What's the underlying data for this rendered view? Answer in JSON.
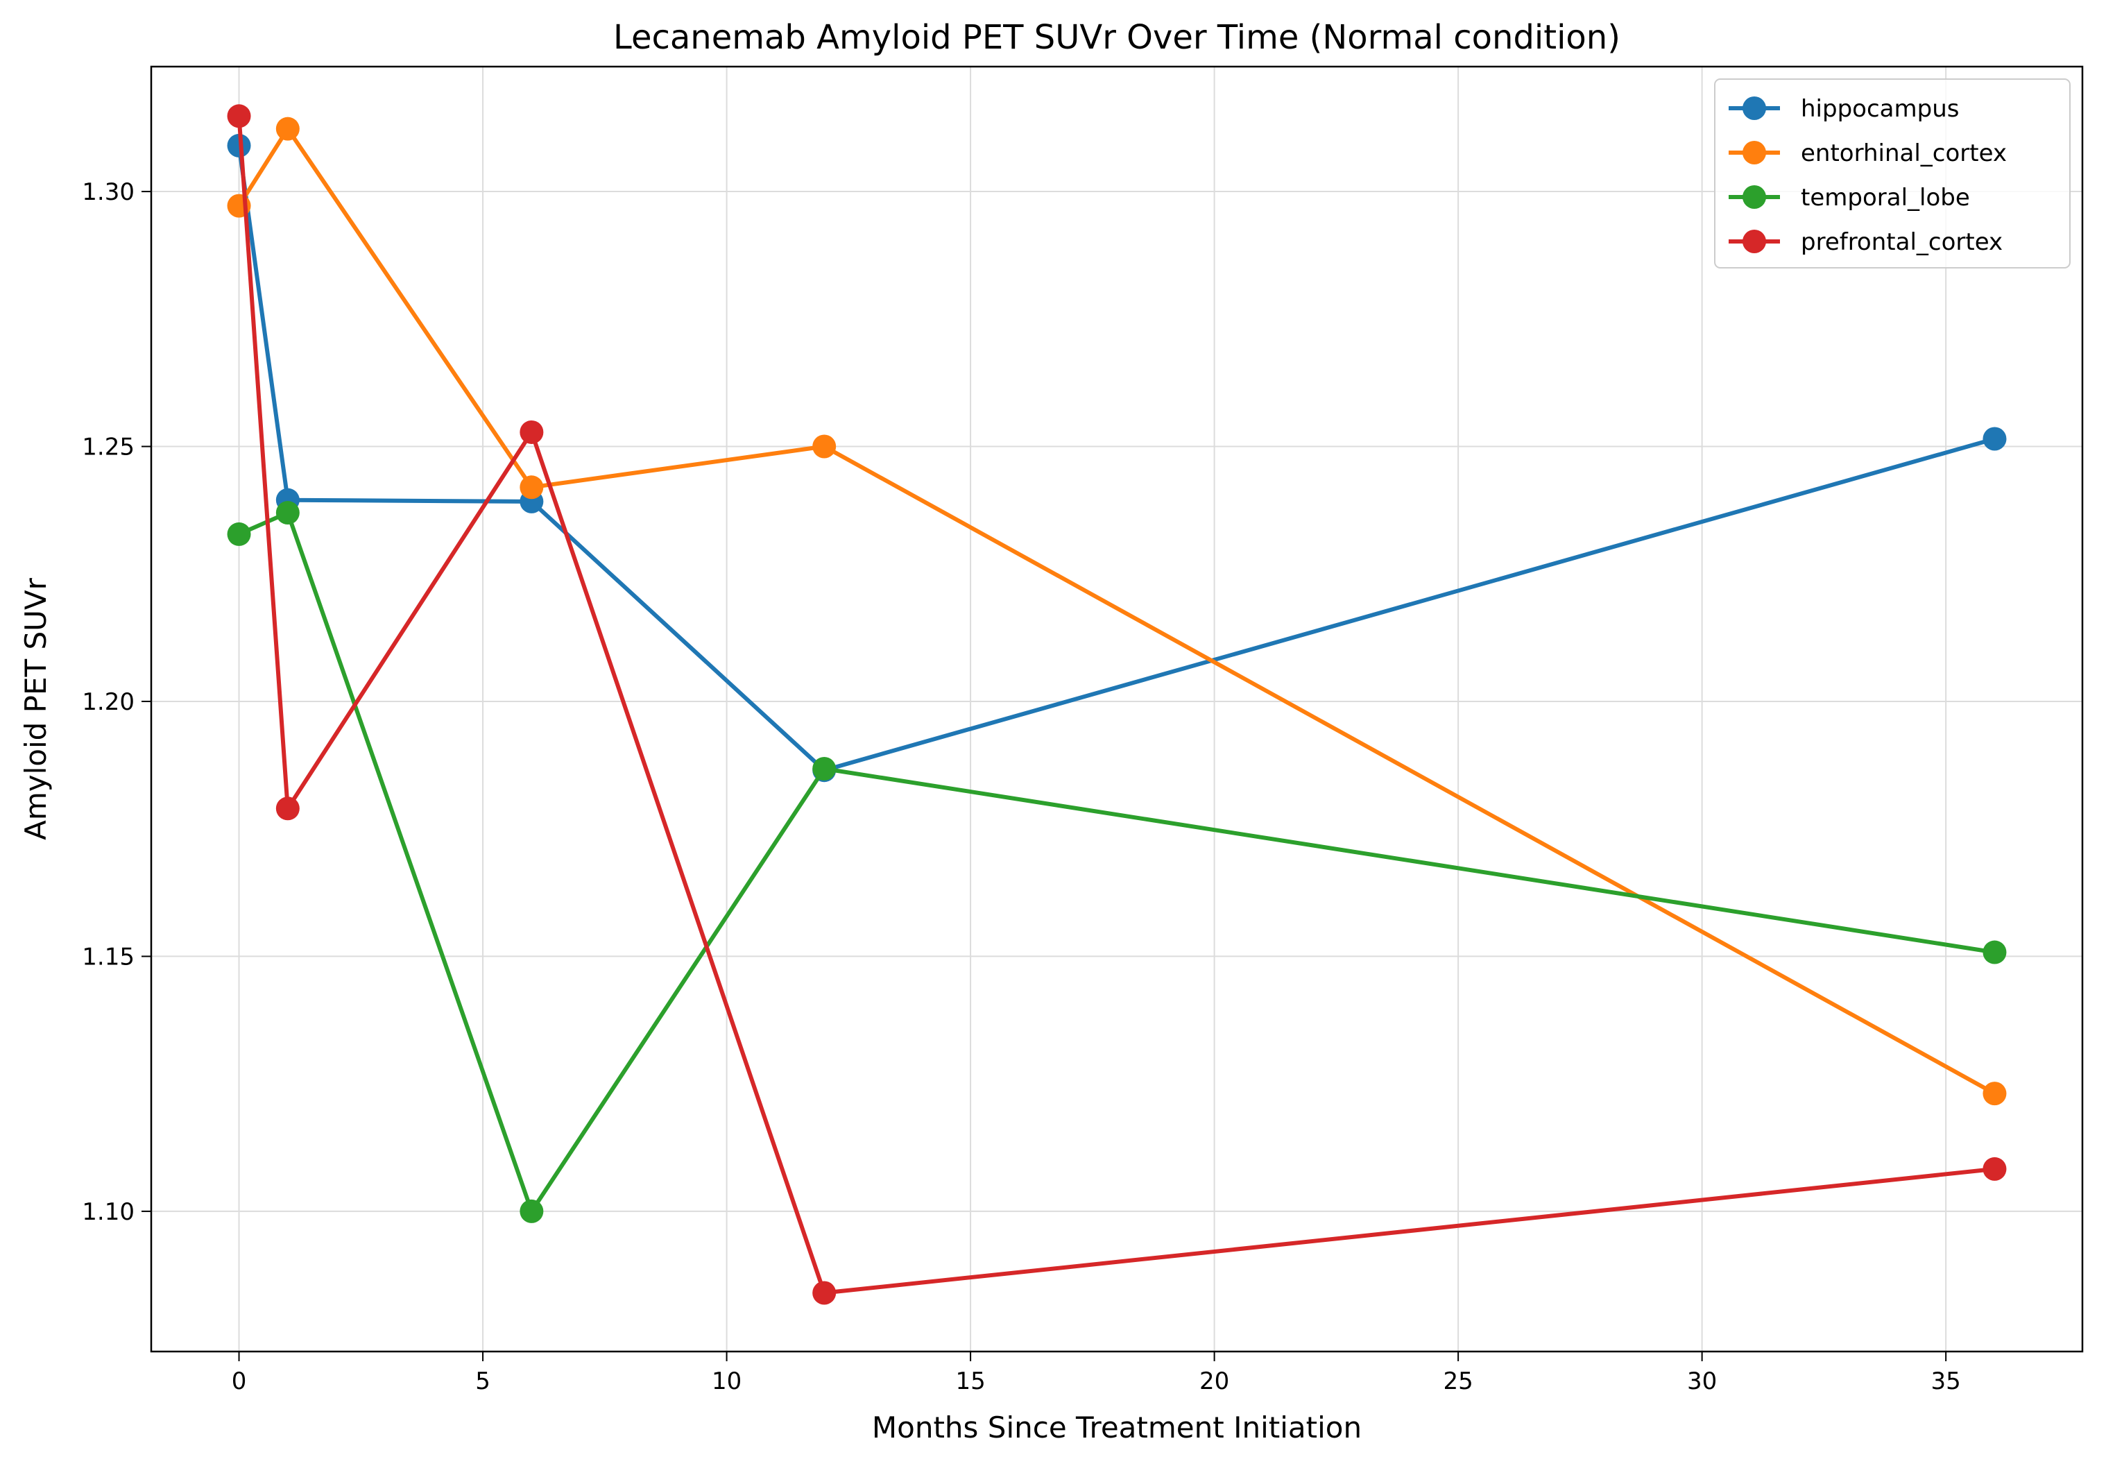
{
  "chart_data": {
    "type": "line",
    "title": "Lecanemab Amyloid PET SUVr Over Time (Normal condition)",
    "xlabel": "Months Since Treatment Initiation",
    "ylabel": "Amyloid PET SUVr",
    "x": [
      0,
      1,
      6,
      12,
      36
    ],
    "xlim": [
      -1.8,
      37.8
    ],
    "ylim": [
      1.0725,
      1.3245
    ],
    "xticks": [
      0,
      5,
      10,
      15,
      20,
      25,
      30,
      35
    ],
    "yticks": [
      1.1,
      1.15,
      1.2,
      1.25,
      1.3
    ],
    "xtick_labels": [
      "0",
      "5",
      "10",
      "15",
      "20",
      "25",
      "30",
      "35"
    ],
    "ytick_labels": [
      "1.10",
      "1.15",
      "1.20",
      "1.25",
      "1.30"
    ],
    "grid": true,
    "legend_position": "top-right",
    "series": [
      {
        "name": "hippocampus",
        "color": "#1f77b4",
        "values": [
          1.309,
          1.2395,
          1.2392,
          1.1865,
          1.2515
        ]
      },
      {
        "name": "entorhinal_cortex",
        "color": "#ff7f0e",
        "values": [
          1.2972,
          1.3123,
          1.242,
          1.25,
          1.1231
        ]
      },
      {
        "name": "temporal_lobe",
        "color": "#2ca02c",
        "values": [
          1.2328,
          1.237,
          1.1,
          1.1868,
          1.1508
        ]
      },
      {
        "name": "prefrontal_cortex",
        "color": "#d62728",
        "values": [
          1.3148,
          1.179,
          1.2528,
          1.084,
          1.1083
        ]
      }
    ]
  }
}
